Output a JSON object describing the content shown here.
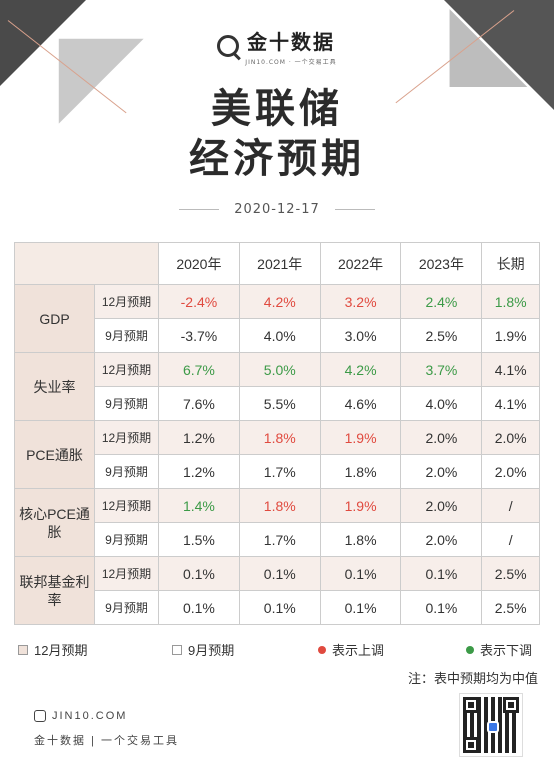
{
  "header": {
    "logo_text": "金十数据",
    "logo_sub": "JIN10.COM · 一个交易工具"
  },
  "title_line1": "美联储",
  "title_line2": "经济预期",
  "date": "2020-12-17",
  "table": {
    "columns": [
      "2020年",
      "2021年",
      "2022年",
      "2023年",
      "长期"
    ],
    "rows": [
      {
        "category": "GDP",
        "sub": "12月预期",
        "values": [
          "-2.4%",
          "4.2%",
          "3.2%",
          "2.4%",
          "1.8%"
        ],
        "colors": [
          "red",
          "red",
          "red",
          "green",
          "green"
        ]
      },
      {
        "category": "",
        "sub": "9月预期",
        "values": [
          "-3.7%",
          "4.0%",
          "3.0%",
          "2.5%",
          "1.9%"
        ],
        "colors": [
          "",
          "",
          "",
          "",
          ""
        ]
      },
      {
        "category": "失业率",
        "sub": "12月预期",
        "values": [
          "6.7%",
          "5.0%",
          "4.2%",
          "3.7%",
          "4.1%"
        ],
        "colors": [
          "green",
          "green",
          "green",
          "green",
          ""
        ]
      },
      {
        "category": "",
        "sub": "9月预期",
        "values": [
          "7.6%",
          "5.5%",
          "4.6%",
          "4.0%",
          "4.1%"
        ],
        "colors": [
          "",
          "",
          "",
          "",
          ""
        ]
      },
      {
        "category": "PCE通胀",
        "sub": "12月预期",
        "values": [
          "1.2%",
          "1.8%",
          "1.9%",
          "2.0%",
          "2.0%"
        ],
        "colors": [
          "",
          "red",
          "red",
          "",
          ""
        ]
      },
      {
        "category": "",
        "sub": "9月预期",
        "values": [
          "1.2%",
          "1.7%",
          "1.8%",
          "2.0%",
          "2.0%"
        ],
        "colors": [
          "",
          "",
          "",
          "",
          ""
        ]
      },
      {
        "category": "核心PCE通胀",
        "sub": "12月预期",
        "values": [
          "1.4%",
          "1.8%",
          "1.9%",
          "2.0%",
          "/"
        ],
        "colors": [
          "green",
          "red",
          "red",
          "",
          ""
        ]
      },
      {
        "category": "",
        "sub": "9月预期",
        "values": [
          "1.5%",
          "1.7%",
          "1.8%",
          "2.0%",
          "/"
        ],
        "colors": [
          "",
          "",
          "",
          "",
          ""
        ]
      },
      {
        "category": "联邦基金利率",
        "sub": "12月预期",
        "values": [
          "0.1%",
          "0.1%",
          "0.1%",
          "0.1%",
          "2.5%"
        ],
        "colors": [
          "",
          "",
          "",
          "",
          ""
        ]
      },
      {
        "category": "",
        "sub": "9月预期",
        "values": [
          "0.1%",
          "0.1%",
          "0.1%",
          "0.1%",
          "2.5%"
        ],
        "colors": [
          "",
          "",
          "",
          "",
          ""
        ]
      }
    ]
  },
  "legend": {
    "dec": "12月预期",
    "sep": "9月预期",
    "up": "表示上调",
    "down": "表示下调",
    "up_color": "#e04a3f",
    "down_color": "#3c9a47"
  },
  "note": "注：表中预期均为中值",
  "footer": {
    "site": "JIN10.COM",
    "brand": "金十数据 | 一个交易工具"
  }
}
